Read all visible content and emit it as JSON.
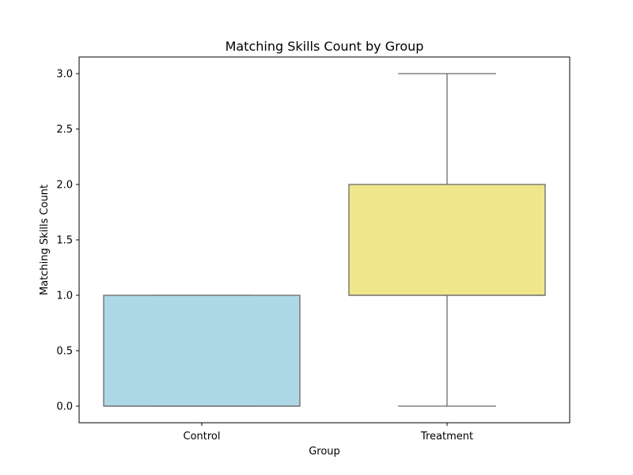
{
  "chart_data": {
    "type": "box",
    "title": "Matching Skills Count by Group",
    "xlabel": "Group",
    "ylabel": "Matching Skills Count",
    "categories": [
      "Control",
      "Treatment"
    ],
    "boxes": [
      {
        "category": "Control",
        "min": 0.0,
        "q1": 0.0,
        "median": 0.0,
        "q3": 1.0,
        "max": 1.0,
        "color": "#add8e6"
      },
      {
        "category": "Treatment",
        "min": 0.0,
        "q1": 1.0,
        "median": 1.0,
        "q3": 2.0,
        "max": 3.0,
        "color": "#f0e68c"
      }
    ],
    "ylim": [
      -0.15,
      3.15
    ],
    "yticks": [
      "0.0",
      "0.5",
      "1.0",
      "1.5",
      "2.0",
      "2.5",
      "3.0"
    ],
    "ytick_values": [
      0.0,
      0.5,
      1.0,
      1.5,
      2.0,
      2.5,
      3.0
    ],
    "grid": false,
    "legend": "none"
  }
}
